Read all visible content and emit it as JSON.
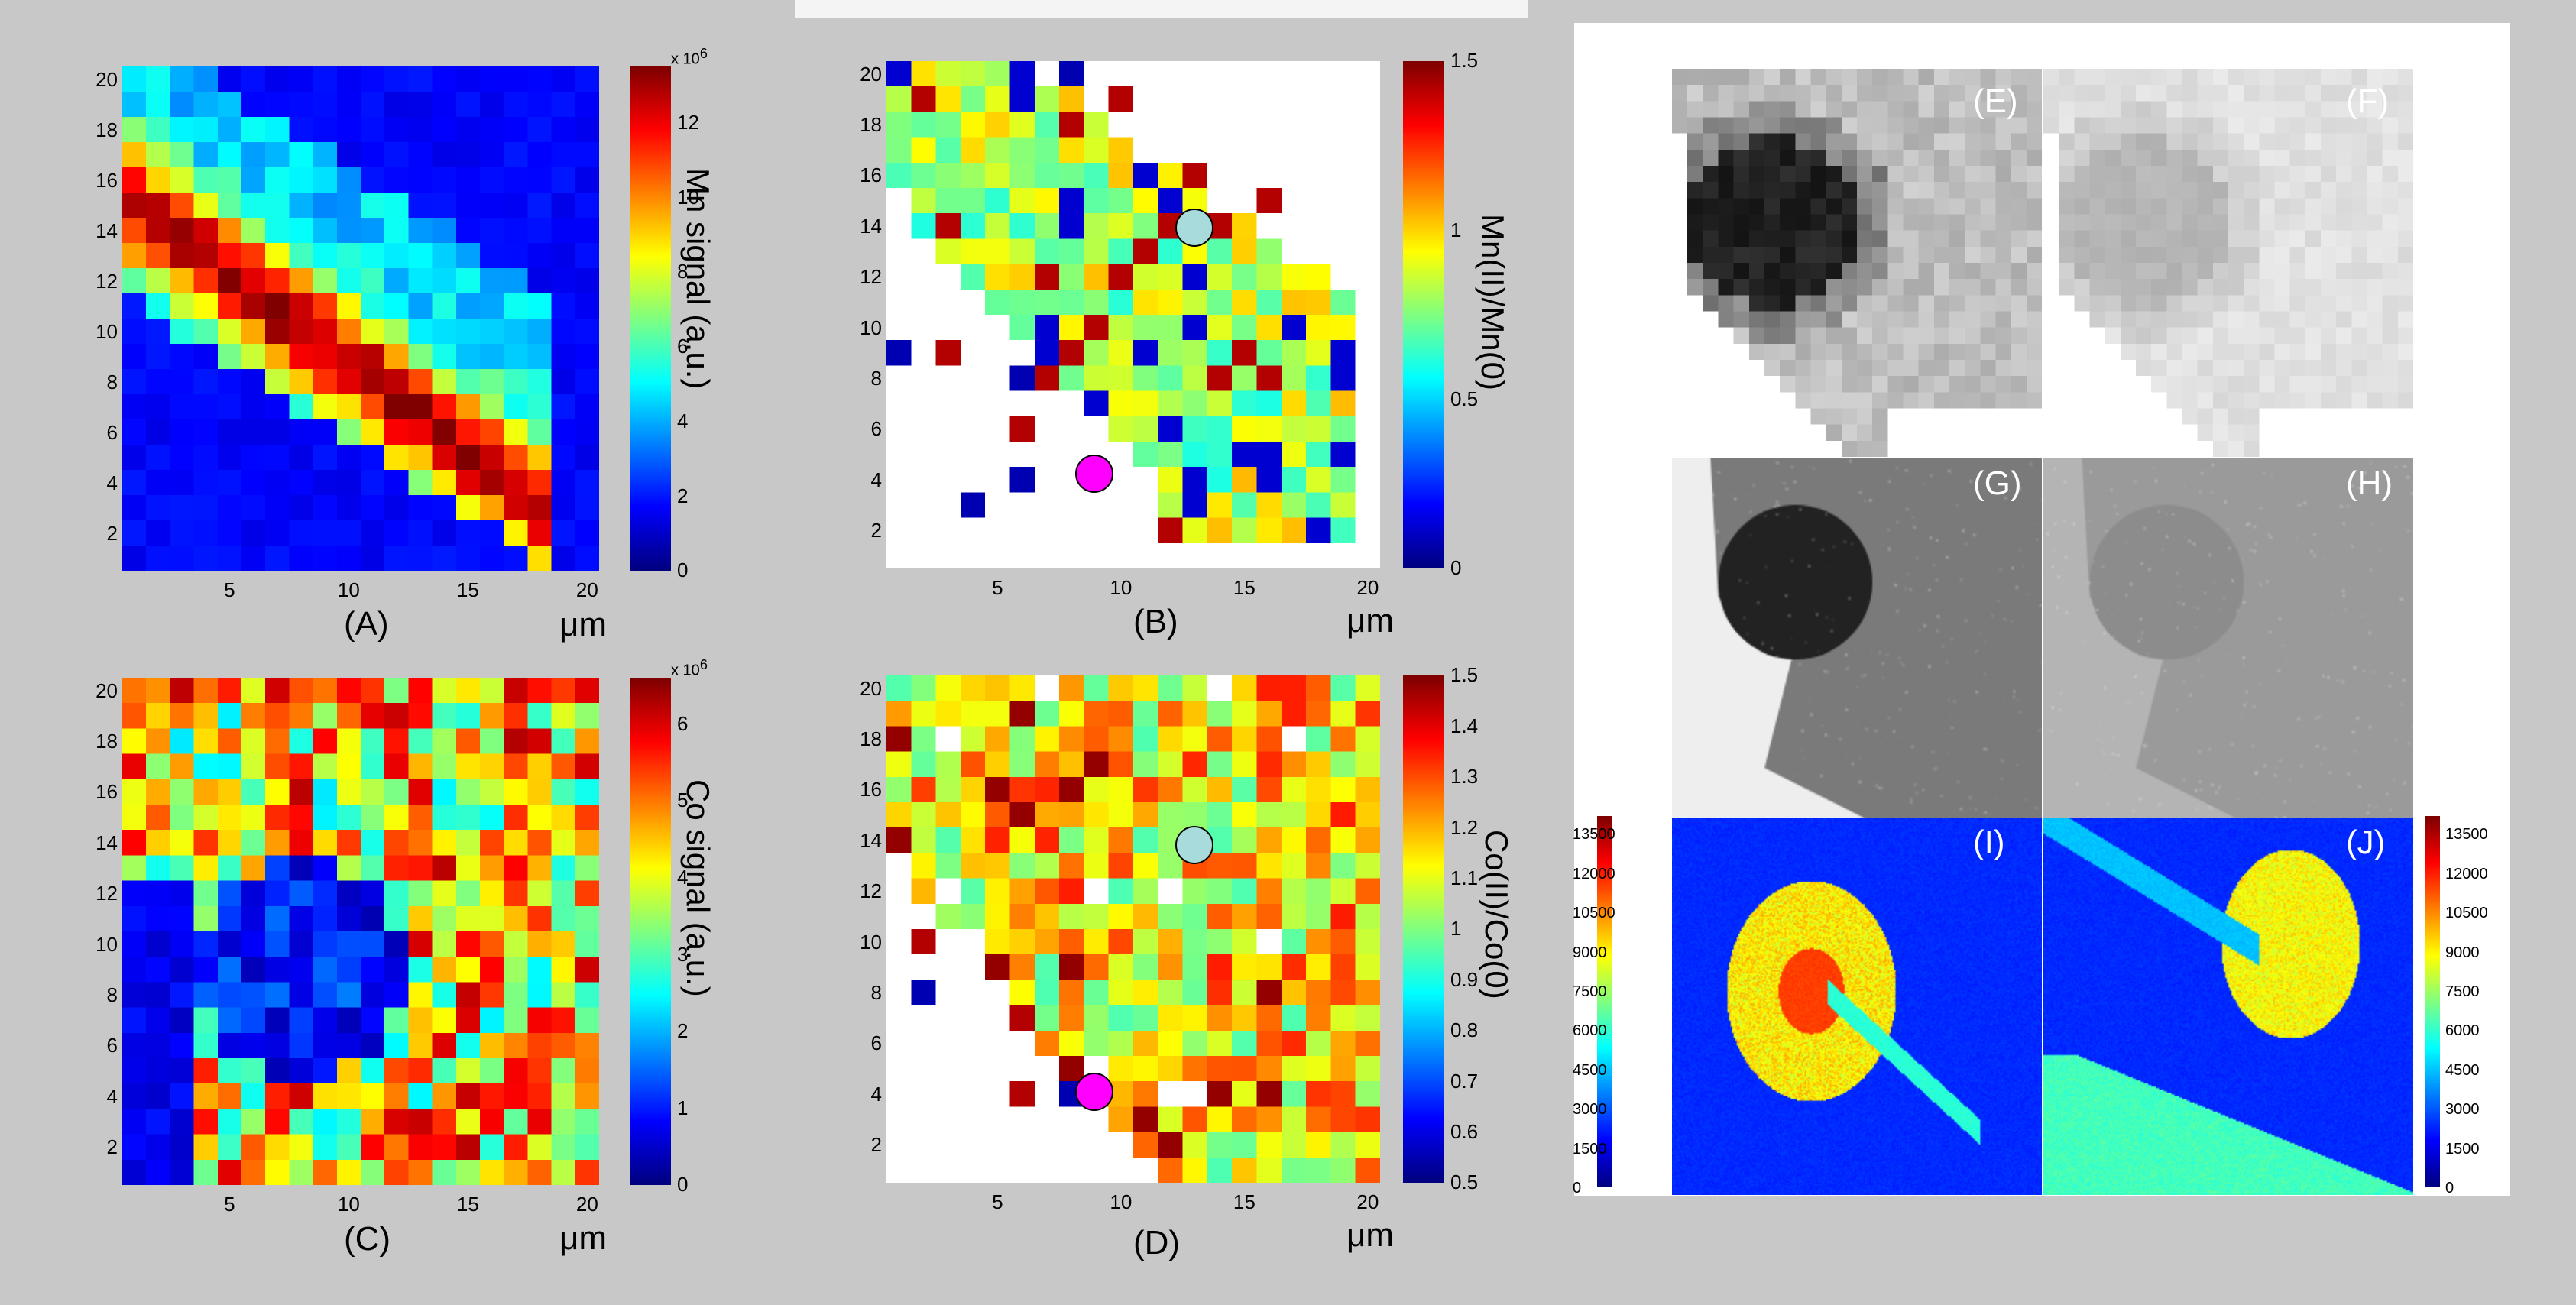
{
  "panels": {
    "A": {
      "label": "(A)",
      "cbar_title": "Mn signal (a.u.)",
      "cbar_exponent": "x 10",
      "cbar_exp_power": "6",
      "cbar_ticks": [
        "0",
        "2",
        "4",
        "6",
        "8",
        "10",
        "12"
      ],
      "y_ticks": [
        "2",
        "4",
        "6",
        "8",
        "10",
        "12",
        "14",
        "16",
        "18",
        "20"
      ],
      "x_ticks": [
        "5",
        "10",
        "15",
        "20"
      ],
      "unit": "μm"
    },
    "B": {
      "label": "(B)",
      "cbar_title": "Mn(II)/Mn(0)",
      "cbar_ticks": [
        "0",
        "0.5",
        "1",
        "1.5"
      ],
      "y_ticks": [
        "2",
        "4",
        "6",
        "8",
        "10",
        "12",
        "14",
        "16",
        "18",
        "20"
      ],
      "x_ticks": [
        "5",
        "10",
        "15",
        "20"
      ],
      "unit": "μm"
    },
    "C": {
      "label": "(C)",
      "cbar_title": "Co signal (a.u.)",
      "cbar_exponent": "x 10",
      "cbar_exp_power": "6",
      "cbar_ticks": [
        "0",
        "1",
        "2",
        "3",
        "4",
        "5",
        "6"
      ],
      "y_ticks": [
        "2",
        "4",
        "6",
        "8",
        "10",
        "12",
        "14",
        "16",
        "18",
        "20"
      ],
      "x_ticks": [
        "5",
        "10",
        "15",
        "20"
      ],
      "unit": "μm"
    },
    "D": {
      "label": "(D)",
      "cbar_title": "Co(II)/Co(0)",
      "cbar_ticks": [
        "0.5",
        "0.6",
        "0.7",
        "0.8",
        "0.9",
        "1",
        "1.1",
        "1.2",
        "1.3",
        "1.4",
        "1.5"
      ],
      "y_ticks": [
        "2",
        "4",
        "6",
        "8",
        "10",
        "12",
        "14",
        "16",
        "18",
        "20"
      ],
      "x_ticks": [
        "5",
        "10",
        "15",
        "20"
      ],
      "unit": "μm"
    },
    "E": {
      "label": "(E)"
    },
    "F": {
      "label": "(F)"
    },
    "G": {
      "label": "(G)"
    },
    "H": {
      "label": "(H)"
    },
    "I": {
      "label": "(I)",
      "cbar_ticks": [
        "0",
        "1500",
        "3000",
        "4500",
        "6000",
        "7500",
        "9000",
        "10500",
        "12000",
        "13500"
      ]
    },
    "J": {
      "label": "(J)",
      "cbar_ticks": [
        "0",
        "1500",
        "3000",
        "4500",
        "6000",
        "7500",
        "9000",
        "10500",
        "12000",
        "13500"
      ]
    }
  },
  "markers": {
    "cyan_color": "#a8dcdc",
    "magenta_color": "#ff00ff"
  }
}
